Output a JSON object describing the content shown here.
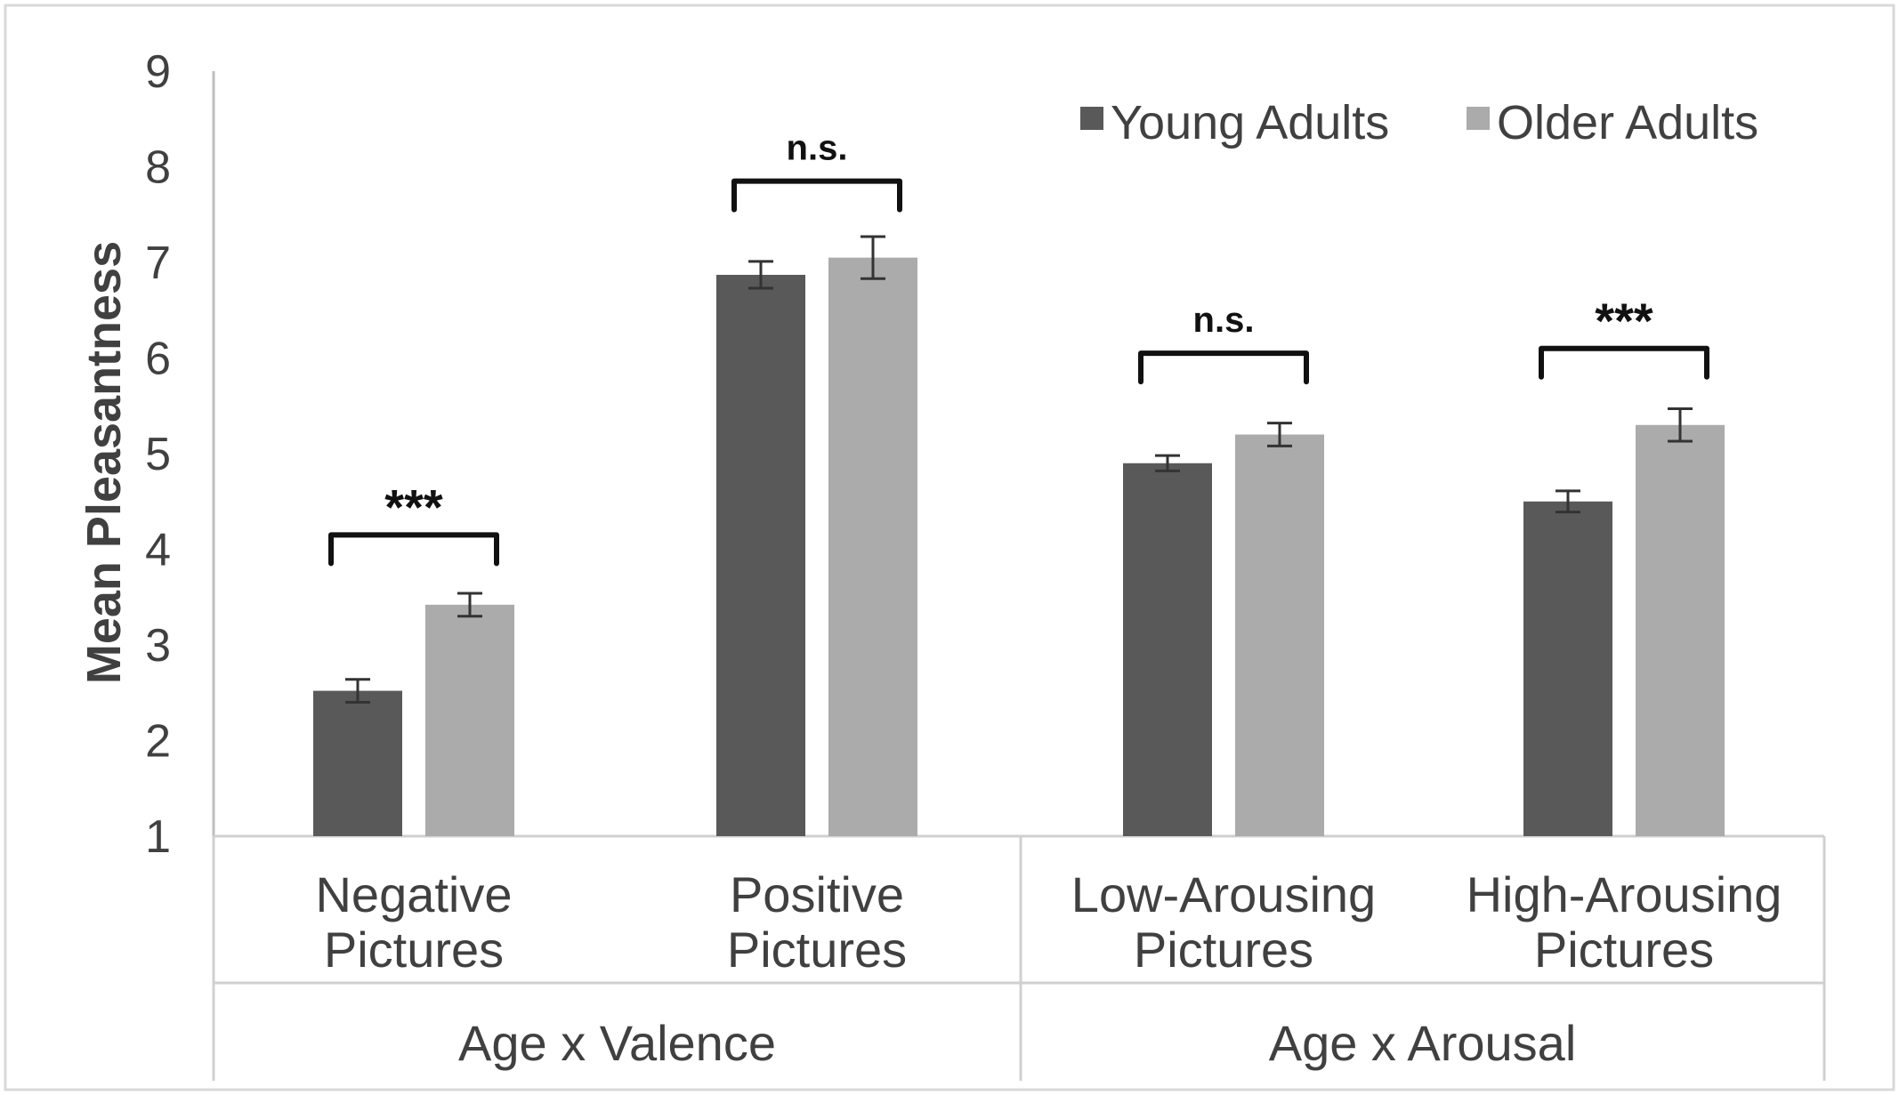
{
  "chart_data": {
    "type": "bar",
    "title": "",
    "xlabel": "",
    "ylabel": "Mean Pleasantness",
    "ylim": [
      1,
      9
    ],
    "yticks": [
      "1",
      "2",
      "3",
      "4",
      "5",
      "6",
      "7",
      "8",
      "9"
    ],
    "grid": false,
    "legend_position": "top-right",
    "categories": [
      [
        "Negative",
        "Pictures"
      ],
      [
        "Positive",
        "Pictures"
      ],
      [
        "Low-Arousing",
        "Pictures"
      ],
      [
        "High-Arousing",
        "Pictures"
      ]
    ],
    "groups": [
      {
        "label": "Age x Valence",
        "categories": [
          0,
          1
        ]
      },
      {
        "label": "Age x Arousal",
        "categories": [
          2,
          3
        ]
      }
    ],
    "series": [
      {
        "name": "Young Adults",
        "color": "#595959",
        "values": [
          2.52,
          6.87,
          4.9,
          4.5
        ],
        "errors": [
          0.12,
          0.14,
          0.08,
          0.11
        ]
      },
      {
        "name": "Older Adults",
        "color": "#ababab",
        "values": [
          3.42,
          7.05,
          5.2,
          5.3
        ],
        "errors": [
          0.12,
          0.22,
          0.12,
          0.17
        ]
      }
    ],
    "significance": [
      {
        "category": 0,
        "label": "***",
        "level": 4.15
      },
      {
        "category": 1,
        "label": "n.s.",
        "level": 7.85
      },
      {
        "category": 2,
        "label": "n.s.",
        "level": 6.05
      },
      {
        "category": 3,
        "label": "***",
        "level": 6.1
      }
    ]
  }
}
